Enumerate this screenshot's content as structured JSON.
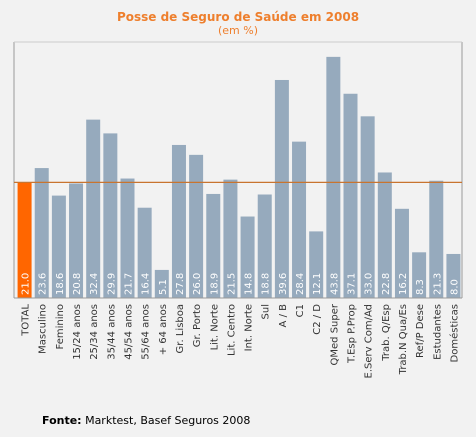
{
  "chart_data": {
    "type": "bar",
    "title": "Posse de Seguro de Saúde em 2008",
    "subtitle": "(em %)",
    "categories": [
      "TOTAL",
      "Masculino",
      "Feminino",
      "15/24 anos",
      "25/34 anos",
      "35/44 anos",
      "45/54 anos",
      "55/64 anos",
      "+ 64 anos",
      "Gr. Lisboa",
      "Gr. Porto",
      "Lit. Norte",
      "Lit. Centro",
      "Int. Norte",
      "Sul",
      "A / B",
      "C1",
      "C2 / D",
      "QMed Super",
      "T.Esp P.Prop",
      "E.Serv Com/Ad",
      "Trab. Q/Esp",
      "Trab.N Qua/Es",
      "Ref/P Dese",
      "Estudantes",
      "Domésticas"
    ],
    "values": [
      21.0,
      23.6,
      18.6,
      20.8,
      32.4,
      29.9,
      21.7,
      16.4,
      5.1,
      27.8,
      26.0,
      18.9,
      21.5,
      14.8,
      18.8,
      39.6,
      28.4,
      12.1,
      43.8,
      37.1,
      33.0,
      22.8,
      16.2,
      8.3,
      21.3,
      8.0
    ],
    "value_labels": [
      "21.0",
      "23.6",
      "18.6",
      "20.8",
      "32.4",
      "29.9",
      "21.7",
      "16.4",
      "5.1",
      "27.8",
      "26.0",
      "18.9",
      "21.5",
      "14.8",
      "18.8",
      "39.6",
      "28.4",
      "12.1",
      "43.8",
      "37.1",
      "33.0",
      "22.8",
      "16.2",
      "8.3",
      "21.3",
      "8.0"
    ],
    "reference_line": 21.0,
    "ylim": [
      0,
      46.5
    ],
    "colors": {
      "bar": "#96aabd",
      "total_bar": "#ff6600",
      "reference_line": "#c8742f",
      "title": "#ee7f2d",
      "plot_bg": "#f2f2f2",
      "axis": "#999999"
    }
  },
  "source": {
    "label": "Fonte:",
    "text": " Marktest, Basef Seguros 2008"
  }
}
